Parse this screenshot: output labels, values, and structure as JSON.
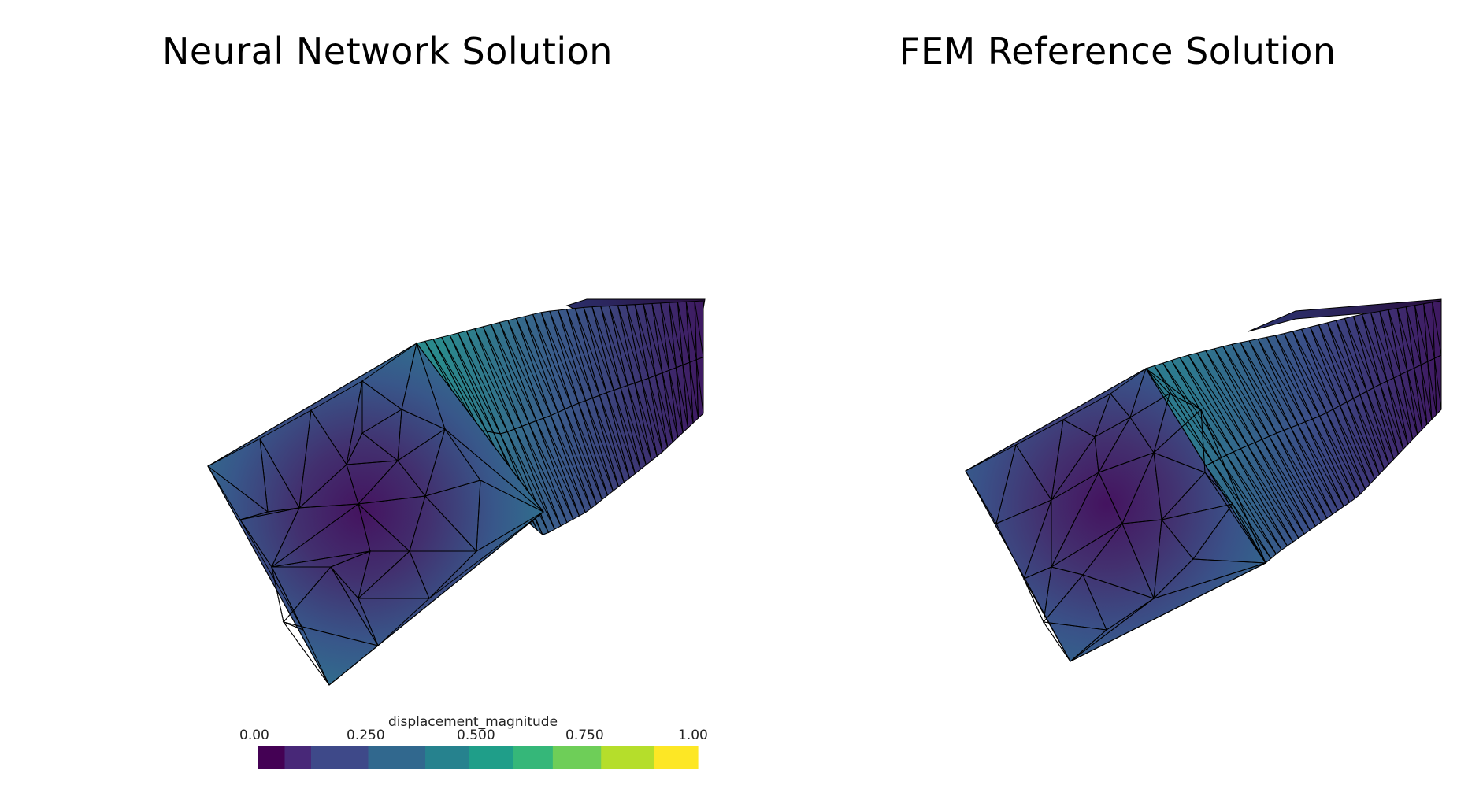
{
  "titles": {
    "left": "Neural Network Solution",
    "right": "FEM Reference Solution"
  },
  "colorbar": {
    "title": "displacement_magnitude",
    "ticks": [
      "0.00",
      "0.250",
      "0.500",
      "0.750",
      "1.00"
    ],
    "colormap": "viridis",
    "colors": [
      "#440154",
      "#482878",
      "#3e4989",
      "#31688e",
      "#26828e",
      "#1f9e89",
      "#35b779",
      "#6ece58",
      "#b5de2b",
      "#fde725"
    ]
  },
  "mesh": {
    "edge_color": "#000000",
    "low_color": "#431560",
    "high_color": "#2a8a8c"
  }
}
